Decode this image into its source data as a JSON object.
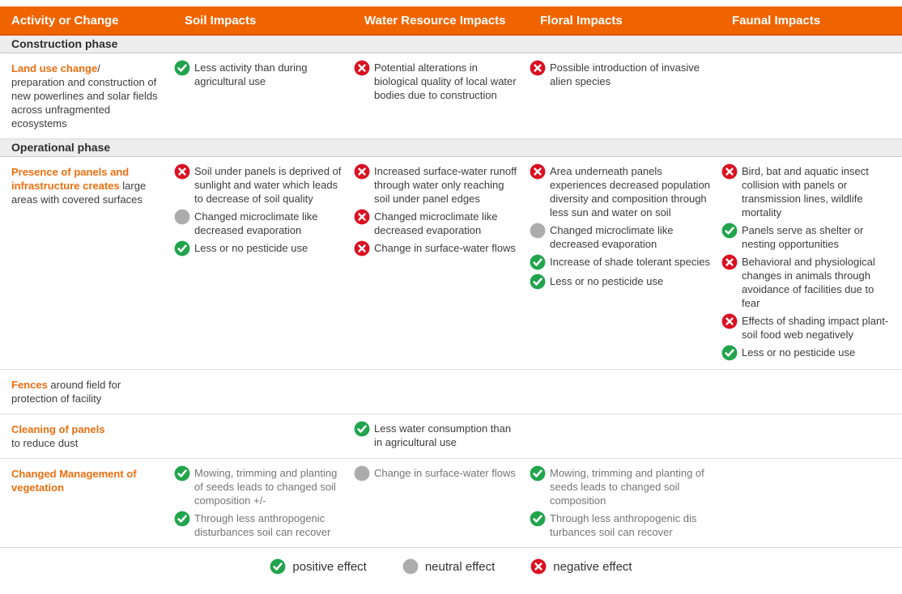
{
  "colors": {
    "header_bg": "#F06400",
    "accent_text": "#ED6E0F",
    "positive": "#21A44D",
    "neutral": "#ACACAC",
    "negative": "#DB1021"
  },
  "header": {
    "columns": [
      "Activity or Change",
      "Soil Impacts",
      "Water Resource Impacts",
      "Floral Impacts",
      "Faunal Impacts"
    ]
  },
  "sections": [
    {
      "label": "Construction phase",
      "rows": [
        {
          "muted": false,
          "activity": {
            "highlight": "Land use change",
            "rest": "/\npreparation and construction of new powerlines and solar fields across unfragmented ecosystems"
          },
          "cells": {
            "soil": [
              {
                "effect": "positive",
                "text": "Less activity than during agricultural use"
              }
            ],
            "water": [
              {
                "effect": "negative",
                "text": "Potential alterations in biological quality of local water bodies due to construction"
              }
            ],
            "floral": [
              {
                "effect": "negative",
                "text": "Possible introduction of invasive alien species"
              }
            ],
            "faunal": []
          }
        }
      ]
    },
    {
      "label": "Operational phase",
      "rows": [
        {
          "muted": false,
          "activity": {
            "highlight": "Presence of panels and infrastructure creates",
            "rest": " large areas with covered surfaces"
          },
          "cells": {
            "soil": [
              {
                "effect": "negative",
                "text": "Soil under panels is deprived of sunlight and water which leads to decrease of soil quality"
              },
              {
                "effect": "neutral",
                "text": "Changed microclimate like decreased evaporation"
              },
              {
                "effect": "positive",
                "text": "Less or no pesticide use"
              }
            ],
            "water": [
              {
                "effect": "negative",
                "text": "Increased surface-water runoff through water only reaching soil under panel edges"
              },
              {
                "effect": "negative",
                "text": "Changed microclimate like decreased evaporation"
              },
              {
                "effect": "negative",
                "text": "Change in surface-water flows"
              }
            ],
            "floral": [
              {
                "effect": "negative",
                "text": "Area underneath panels experiences decreased population diversity and composition through less sun and water on soil"
              },
              {
                "effect": "neutral",
                "text": "Changed microclimate like decreased evaporation"
              },
              {
                "effect": "positive",
                "text": "Increase of shade tolerant species"
              },
              {
                "effect": "positive",
                "text": "Less or no pesticide use"
              }
            ],
            "faunal": [
              {
                "effect": "negative",
                "text": "Bird, bat and aquatic insect collision with panels or transmission lines, wildlife mortality"
              },
              {
                "effect": "positive",
                "text": "Panels serve as shelter or nesting opportunities"
              },
              {
                "effect": "negative",
                "text": "Behavioral and physiological changes in animals through avoidance of facilities due to fear"
              },
              {
                "effect": "negative",
                "text": "Effects of shading impact plant-soil food web negatively"
              },
              {
                "effect": "positive",
                "text": "Less or no pesticide use"
              }
            ]
          }
        },
        {
          "muted": false,
          "activity": {
            "highlight": "Fences",
            "rest": " around field for protection of facility"
          },
          "cells": {
            "soil": [],
            "water": [],
            "floral": [],
            "faunal": []
          }
        },
        {
          "muted": false,
          "activity": {
            "highlight": "Cleaning of panels",
            "rest": "\nto reduce dust"
          },
          "cells": {
            "soil": [],
            "water": [
              {
                "effect": "positive",
                "text": "Less water consumption than in agricultural use"
              }
            ],
            "floral": [],
            "faunal": []
          }
        },
        {
          "muted": true,
          "activity": {
            "highlight": "Changed Management of vegetation",
            "rest": ""
          },
          "cells": {
            "soil": [
              {
                "effect": "positive",
                "text": "Mowing, trimming and planting of seeds leads to changed soil composition +/-"
              },
              {
                "effect": "positive",
                "text": "Through less anthropogenic disturbances soil can recover"
              }
            ],
            "water": [
              {
                "effect": "neutral",
                "text": "Change in surface-water flows"
              }
            ],
            "floral": [
              {
                "effect": "positive",
                "text": "Mowing, trimming and planting of seeds leads to changed soil composition"
              },
              {
                "effect": "positive",
                "text": "Through less anthropogenic dis turbances soil can recover"
              }
            ],
            "faunal": []
          }
        }
      ]
    }
  ],
  "legend": {
    "items": [
      {
        "effect": "positive",
        "label": "positive effect"
      },
      {
        "effect": "neutral",
        "label": "neutral effect"
      },
      {
        "effect": "negative",
        "label": "negative effect"
      }
    ]
  }
}
